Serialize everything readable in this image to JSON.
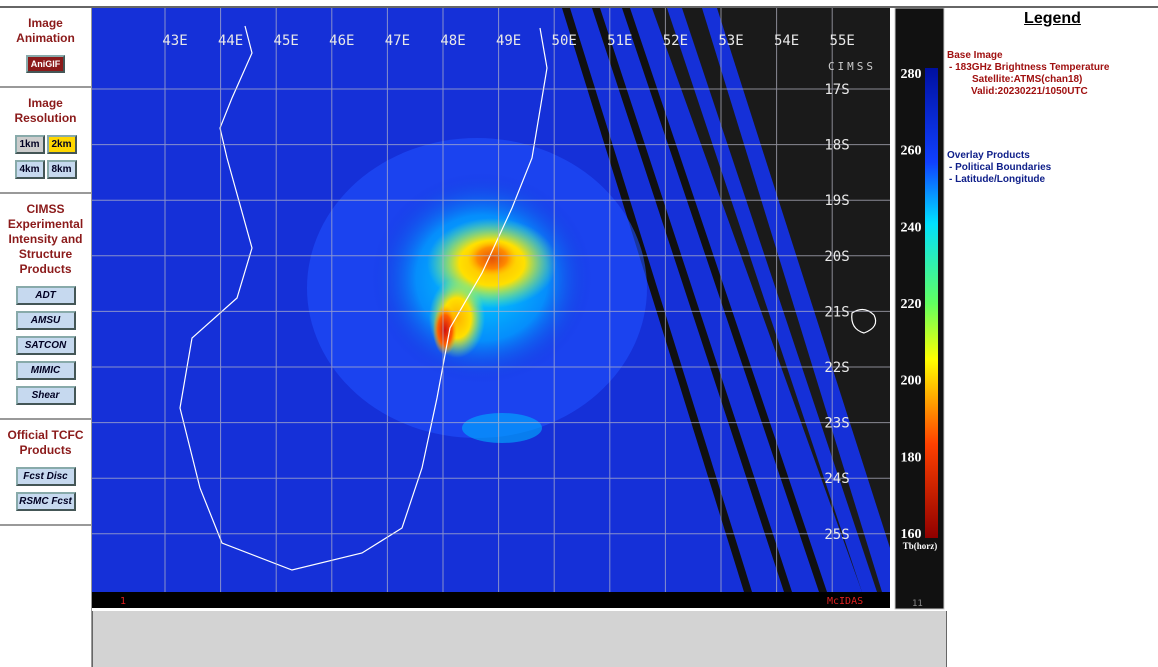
{
  "sidebar": {
    "sections": [
      {
        "title": "Image Animation",
        "buttons": [
          "AniGIF"
        ]
      },
      {
        "title": "Image Resolution",
        "buttons": [
          "1km",
          "2km",
          "4km",
          "8km"
        ]
      },
      {
        "title": "CIMSS Experimental Intensity and Structure Products",
        "buttons": [
          "ADT",
          "AMSU",
          "SATCON",
          "MIMIC",
          "Shear"
        ]
      },
      {
        "title": "Official TCFC Products",
        "buttons": [
          "Fcst Disc",
          "RSMC Fcst"
        ]
      }
    ]
  },
  "image": {
    "lon_labels": [
      "43E",
      "44E",
      "45E",
      "46E",
      "47E",
      "48E",
      "49E",
      "50E",
      "51E",
      "52E",
      "53E",
      "54E",
      "55E"
    ],
    "lat_labels": [
      "17S",
      "18S",
      "19S",
      "20S",
      "21S",
      "22S",
      "23S",
      "24S",
      "25S"
    ],
    "logo": "CIMSS",
    "footer_left": "1",
    "footer_right": "McIDAS"
  },
  "colorbar": {
    "ticks": [
      280,
      260,
      240,
      220,
      200,
      180,
      160
    ],
    "label": "Tb(horz)",
    "corner": "11"
  },
  "legend": {
    "title": "Legend",
    "base_heading": "Base Image",
    "base_lines": [
      "-  183GHz Brightness Temperature",
      "Satellite:ATMS(chan18)",
      "Valid:20230221/1050UTC"
    ],
    "overlay_heading": "Overlay Products",
    "overlay_lines": [
      "-  Political Boundaries",
      "-  Latitude/Longitude"
    ]
  }
}
